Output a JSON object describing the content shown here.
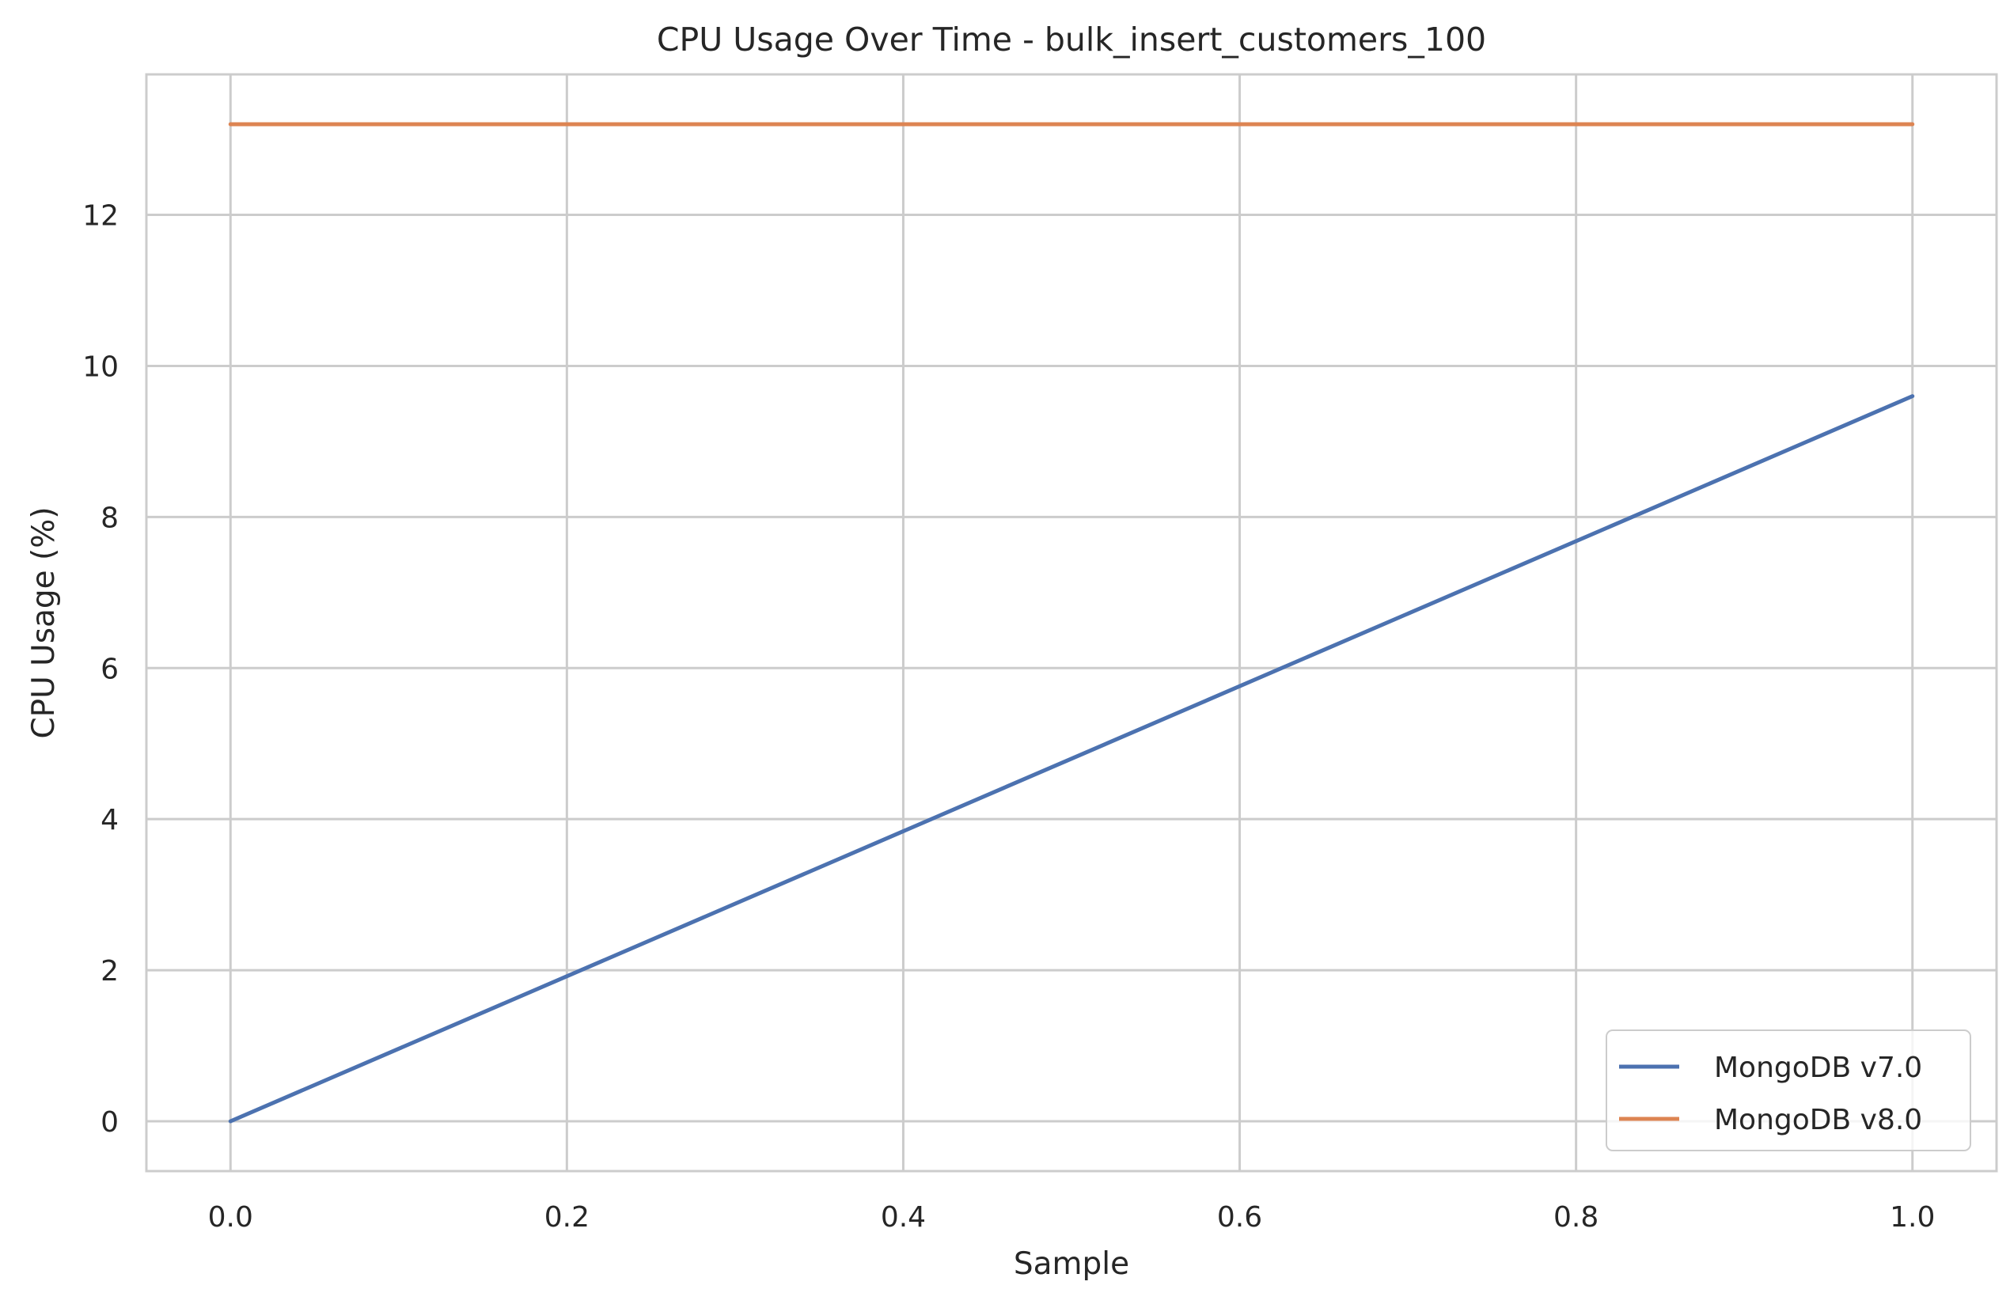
{
  "chart_data": {
    "type": "line",
    "title": "CPU Usage Over Time - bulk_insert_customers_100",
    "xlabel": "Sample",
    "ylabel": "CPU Usage (%)",
    "x": [
      0.0,
      1.0
    ],
    "series": [
      {
        "name": "MongoDB v7.0",
        "color": "#4c72b0",
        "values": [
          0.0,
          9.6
        ]
      },
      {
        "name": "MongoDB v8.0",
        "color": "#dd8452",
        "values": [
          13.2,
          13.2
        ]
      }
    ],
    "xlim": [
      -0.05,
      1.05
    ],
    "ylim": [
      -0.66,
      13.86
    ],
    "xticks": [
      0.0,
      0.2,
      0.4,
      0.6,
      0.8,
      1.0
    ],
    "xtick_labels": [
      "0.0",
      "0.2",
      "0.4",
      "0.6",
      "0.8",
      "1.0"
    ],
    "yticks": [
      0,
      2,
      4,
      6,
      8,
      10,
      12
    ],
    "ytick_labels": [
      "0",
      "2",
      "4",
      "6",
      "8",
      "10",
      "12"
    ],
    "grid": true,
    "legend_position": "lower-right",
    "grid_color": "#cccccc",
    "frame_color": "#cccccc"
  }
}
